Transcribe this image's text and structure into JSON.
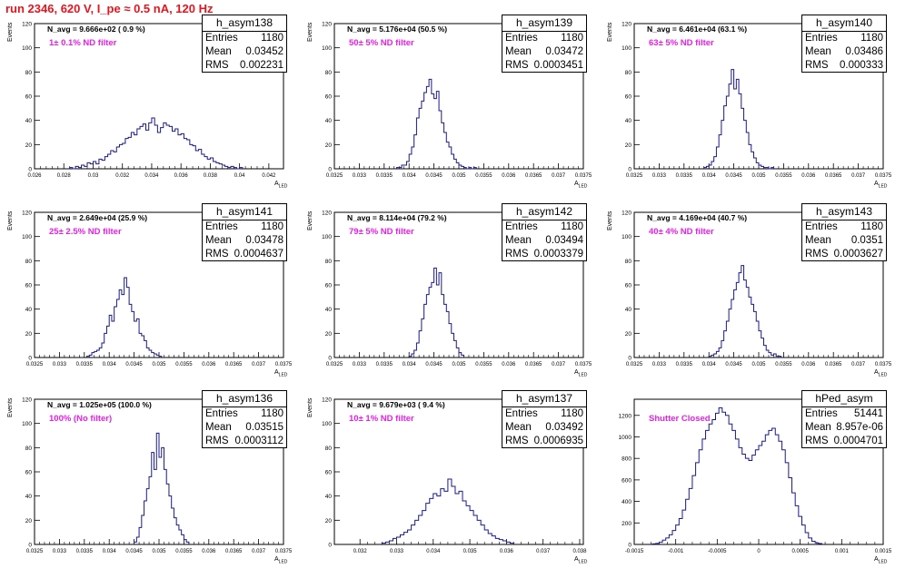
{
  "title": "run 2346,   620 V, I_pe ≈ 0.5 nA, 120 Hz",
  "colors": {
    "title": "#e8141d",
    "filter_label": "#e820e8",
    "histogram": "#1a1a8c"
  },
  "chart_data": [
    {
      "type": "bar",
      "name": "h_asym138",
      "ylabel": "Events",
      "xlabel": "A",
      "xlabel_sub": "LED",
      "navg": "N_avg = 9.666e+02 ( 0.9 %)",
      "filter": "1± 0.1% ND filter",
      "stats": {
        "entries": "1180",
        "mean": "0.03452",
        "rms": "0.002231"
      },
      "xlim": [
        0.026,
        0.043
      ],
      "ylim": [
        0,
        120
      ],
      "xticks": [
        "0.026",
        "0.028",
        "0.03",
        "0.032",
        "0.034",
        "0.036",
        "0.038",
        "0.04",
        "0.042"
      ],
      "xtick_values": [
        0.026,
        0.028,
        0.03,
        0.032,
        0.034,
        0.036,
        0.038,
        0.04,
        0.042
      ],
      "yticks": [
        0,
        20,
        40,
        60,
        80,
        100,
        120
      ],
      "bins": {
        "start": 0.0284,
        "width": 0.0002,
        "values": [
          1,
          0,
          2,
          1,
          3,
          2,
          5,
          4,
          6,
          4,
          8,
          7,
          10,
          12,
          15,
          14,
          18,
          20,
          21,
          25,
          26,
          30,
          28,
          33,
          35,
          37,
          32,
          38,
          42,
          36,
          30,
          34,
          38,
          36,
          35,
          31,
          33,
          28,
          29,
          25,
          24,
          20,
          19,
          15,
          16,
          12,
          10,
          8,
          9,
          6,
          5,
          4,
          3,
          2,
          1,
          2,
          1,
          0,
          1
        ]
      }
    },
    {
      "type": "bar",
      "name": "h_asym139",
      "ylabel": "Events",
      "xlabel": "A",
      "xlabel_sub": "LED",
      "navg": "N_avg = 5.176e+04 (50.5 %)",
      "filter": "50± 5% ND filter",
      "stats": {
        "entries": "1180",
        "mean": "0.03472",
        "rms": "0.0003451"
      },
      "xlim": [
        0.0325,
        0.0375
      ],
      "ylim": [
        0,
        120
      ],
      "xticks": [
        "0.0325",
        "0.033",
        "0.0335",
        "0.034",
        "0.0345",
        "0.035",
        "0.0355",
        "0.036",
        "0.0365",
        "0.037",
        "0.0375"
      ],
      "xtick_values": [
        0.0325,
        0.033,
        0.0335,
        0.034,
        0.0345,
        0.035,
        0.0355,
        0.036,
        0.0365,
        0.037,
        0.0375
      ],
      "yticks": [
        0,
        20,
        40,
        60,
        80,
        100,
        120
      ],
      "bins": {
        "start": 0.03375,
        "width": 5e-05,
        "values": [
          1,
          1,
          3,
          3,
          6,
          12,
          18,
          28,
          42,
          50,
          56,
          63,
          68,
          74,
          62,
          58,
          64,
          48,
          38,
          30,
          22,
          18,
          12,
          8,
          5,
          3,
          2,
          1,
          0,
          1,
          0,
          1
        ]
      }
    },
    {
      "type": "bar",
      "name": "h_asym140",
      "ylabel": "Events",
      "xlabel": "A",
      "xlabel_sub": "LED",
      "navg": "N_avg = 6.461e+04 (63.1 %)",
      "filter": "63± 5% ND filter",
      "stats": {
        "entries": "1180",
        "mean": "0.03486",
        "rms": "0.000333"
      },
      "xlim": [
        0.0325,
        0.0375
      ],
      "ylim": [
        0,
        120
      ],
      "xticks": [
        "0.0325",
        "0.033",
        "0.0335",
        "0.034",
        "0.0345",
        "0.035",
        "0.0355",
        "0.036",
        "0.0365",
        "0.037",
        "0.0375"
      ],
      "xtick_values": [
        0.0325,
        0.033,
        0.0335,
        0.034,
        0.0345,
        0.035,
        0.0355,
        0.036,
        0.0365,
        0.037,
        0.0375
      ],
      "yticks": [
        0,
        20,
        40,
        60,
        80,
        100,
        120
      ],
      "bins": {
        "start": 0.0339,
        "width": 5e-05,
        "values": [
          1,
          2,
          3,
          6,
          10,
          18,
          28,
          40,
          52,
          60,
          70,
          82,
          66,
          74,
          62,
          50,
          40,
          30,
          20,
          14,
          9,
          5,
          3,
          2,
          1,
          1,
          0,
          1
        ]
      }
    },
    {
      "type": "bar",
      "name": "h_asym141",
      "ylabel": "Events",
      "xlabel": "A",
      "xlabel_sub": "LED",
      "navg": "N_avg = 2.649e+04 (25.9 %)",
      "filter": "25± 2.5% ND filter",
      "stats": {
        "entries": "1180",
        "mean": "0.03478",
        "rms": "0.0004637"
      },
      "xlim": [
        0.0325,
        0.0375
      ],
      "ylim": [
        0,
        120
      ],
      "xticks": [
        "0.0325",
        "0.033",
        "0.0335",
        "0.034",
        "0.0345",
        "0.035",
        "0.0355",
        "0.036",
        "0.0365",
        "0.037",
        "0.0375"
      ],
      "xtick_values": [
        0.0325,
        0.033,
        0.0335,
        0.034,
        0.0345,
        0.035,
        0.0355,
        0.036,
        0.0365,
        0.037,
        0.0375
      ],
      "yticks": [
        0,
        20,
        40,
        60,
        80,
        100,
        120
      ],
      "bins": {
        "start": 0.03355,
        "width": 5e-05,
        "values": [
          1,
          2,
          4,
          5,
          6,
          8,
          12,
          20,
          26,
          35,
          30,
          42,
          48,
          56,
          52,
          66,
          58,
          44,
          38,
          30,
          32,
          20,
          18,
          14,
          8,
          6,
          4,
          3,
          2,
          1
        ]
      }
    },
    {
      "type": "bar",
      "name": "h_asym142",
      "ylabel": "Events",
      "xlabel": "A",
      "xlabel_sub": "LED",
      "navg": "N_avg = 8.114e+04 (79.2 %)",
      "filter": "79± 5% ND filter",
      "stats": {
        "entries": "1180",
        "mean": "0.03494",
        "rms": "0.0003379"
      },
      "xlim": [
        0.0325,
        0.0375
      ],
      "ylim": [
        0,
        120
      ],
      "xticks": [
        "0.0325",
        "0.033",
        "0.0335",
        "0.034",
        "0.0345",
        "0.035",
        "0.0355",
        "0.036",
        "0.0365",
        "0.037",
        "0.0375"
      ],
      "xtick_values": [
        0.0325,
        0.033,
        0.0335,
        0.034,
        0.0345,
        0.035,
        0.0355,
        0.036,
        0.0365,
        0.037,
        0.0375
      ],
      "yticks": [
        0,
        20,
        40,
        60,
        80,
        100,
        120
      ],
      "bins": {
        "start": 0.034,
        "width": 5e-05,
        "values": [
          1,
          3,
          6,
          12,
          22,
          32,
          44,
          52,
          58,
          62,
          74,
          60,
          70,
          52,
          44,
          38,
          28,
          20,
          14,
          8,
          4,
          2
        ]
      }
    },
    {
      "type": "bar",
      "name": "h_asym143",
      "ylabel": "Events",
      "xlabel": "A",
      "xlabel_sub": "LED",
      "navg": "N_avg = 4.169e+04 (40.7 %)",
      "filter": "40± 4% ND filter",
      "stats": {
        "entries": "1180",
        "mean": "0.0351",
        "rms": "0.0003627"
      },
      "xlim": [
        0.0325,
        0.0375
      ],
      "ylim": [
        0,
        120
      ],
      "xticks": [
        "0.0325",
        "0.033",
        "0.0335",
        "0.034",
        "0.0345",
        "0.035",
        "0.0355",
        "0.036",
        "0.0365",
        "0.037",
        "0.0375"
      ],
      "xtick_values": [
        0.0325,
        0.033,
        0.0335,
        0.034,
        0.0345,
        0.035,
        0.0355,
        0.036,
        0.0365,
        0.037,
        0.0375
      ],
      "yticks": [
        0,
        20,
        40,
        60,
        80,
        100,
        120
      ],
      "bins": {
        "start": 0.034,
        "width": 5e-05,
        "values": [
          1,
          2,
          3,
          5,
          8,
          14,
          22,
          30,
          40,
          48,
          56,
          62,
          70,
          76,
          64,
          58,
          50,
          44,
          38,
          30,
          22,
          16,
          10,
          6,
          4,
          2,
          3,
          1,
          1
        ]
      }
    },
    {
      "type": "bar",
      "name": "h_asym136",
      "ylabel": "Events",
      "xlabel": "A",
      "xlabel_sub": "LED",
      "navg": "N_avg = 1.025e+05 (100.0 %)",
      "filter": "100% (No filter)",
      "stats": {
        "entries": "1180",
        "mean": "0.03515",
        "rms": "0.0003112"
      },
      "xlim": [
        0.0325,
        0.0375
      ],
      "ylim": [
        0,
        120
      ],
      "xticks": [
        "0.0325",
        "0.033",
        "0.0335",
        "0.034",
        "0.0345",
        "0.035",
        "0.0355",
        "0.036",
        "0.0365",
        "0.037",
        "0.0375"
      ],
      "xtick_values": [
        0.0325,
        0.033,
        0.0335,
        0.034,
        0.0345,
        0.035,
        0.0355,
        0.036,
        0.0365,
        0.037,
        0.0375
      ],
      "yticks": [
        0,
        20,
        40,
        60,
        80,
        100,
        120
      ],
      "bins": {
        "start": 0.0345,
        "width": 5e-05,
        "values": [
          2,
          6,
          14,
          24,
          36,
          46,
          56,
          76,
          62,
          92,
          72,
          80,
          62,
          50,
          40,
          30,
          22,
          16,
          12,
          8,
          4,
          2
        ]
      }
    },
    {
      "type": "bar",
      "name": "h_asym137",
      "ylabel": "Events",
      "xlabel": "A",
      "xlabel_sub": "LED",
      "navg": "N_avg = 9.679e+03 ( 9.4 %)",
      "filter": "10± 1% ND filter",
      "stats": {
        "entries": "1180",
        "mean": "0.03492",
        "rms": "0.0006935"
      },
      "xlim": [
        0.0313,
        0.0381
      ],
      "ylim": [
        0,
        120
      ],
      "xticks": [
        "0.032",
        "0.033",
        "0.034",
        "0.035",
        "0.036",
        "0.037",
        "0.038"
      ],
      "xtick_values": [
        0.032,
        0.033,
        0.034,
        0.035,
        0.036,
        0.037,
        0.038
      ],
      "yticks": [
        0,
        20,
        40,
        60,
        80,
        100,
        120
      ],
      "bins": {
        "start": 0.0326,
        "width": 0.0001,
        "values": [
          1,
          2,
          3,
          5,
          6,
          8,
          10,
          12,
          16,
          20,
          24,
          28,
          34,
          38,
          42,
          40,
          46,
          44,
          54,
          48,
          42,
          44,
          36,
          32,
          28,
          24,
          20,
          16,
          12,
          9,
          7,
          5,
          4,
          3,
          2,
          1
        ]
      }
    },
    {
      "type": "bar",
      "name": "hPed_asym",
      "ylabel": "",
      "xlabel": "A",
      "xlabel_sub": "LED",
      "navg": "",
      "filter": "Shutter Closed",
      "stats": {
        "entries": "51441",
        "mean": "8.957e-06",
        "rms": "0.0004701"
      },
      "xlim": [
        -0.0015,
        0.0015
      ],
      "ylim": [
        0,
        1350
      ],
      "xticks": [
        "-0.0015",
        "-0.001",
        "-0.0005",
        "0",
        "0.0005",
        "0.001",
        "0.0015"
      ],
      "xtick_values": [
        -0.0015,
        -0.001,
        -0.0005,
        0,
        0.0005,
        0.001,
        0.0015
      ],
      "yticks": [
        0,
        200,
        400,
        600,
        800,
        1000,
        1200
      ],
      "bins": {
        "start": -0.00128,
        "width": 4e-05,
        "values": [
          5,
          10,
          20,
          40,
          60,
          90,
          130,
          180,
          240,
          320,
          420,
          520,
          640,
          760,
          880,
          980,
          1060,
          1120,
          1160,
          1220,
          1270,
          1230,
          1200,
          1120,
          1060,
          980,
          900,
          840,
          800,
          780,
          830,
          880,
          920,
          960,
          1020,
          1060,
          1080,
          1020,
          960,
          880,
          760,
          620,
          480,
          360,
          260,
          180,
          110,
          60,
          30,
          15,
          8
        ]
      }
    }
  ]
}
